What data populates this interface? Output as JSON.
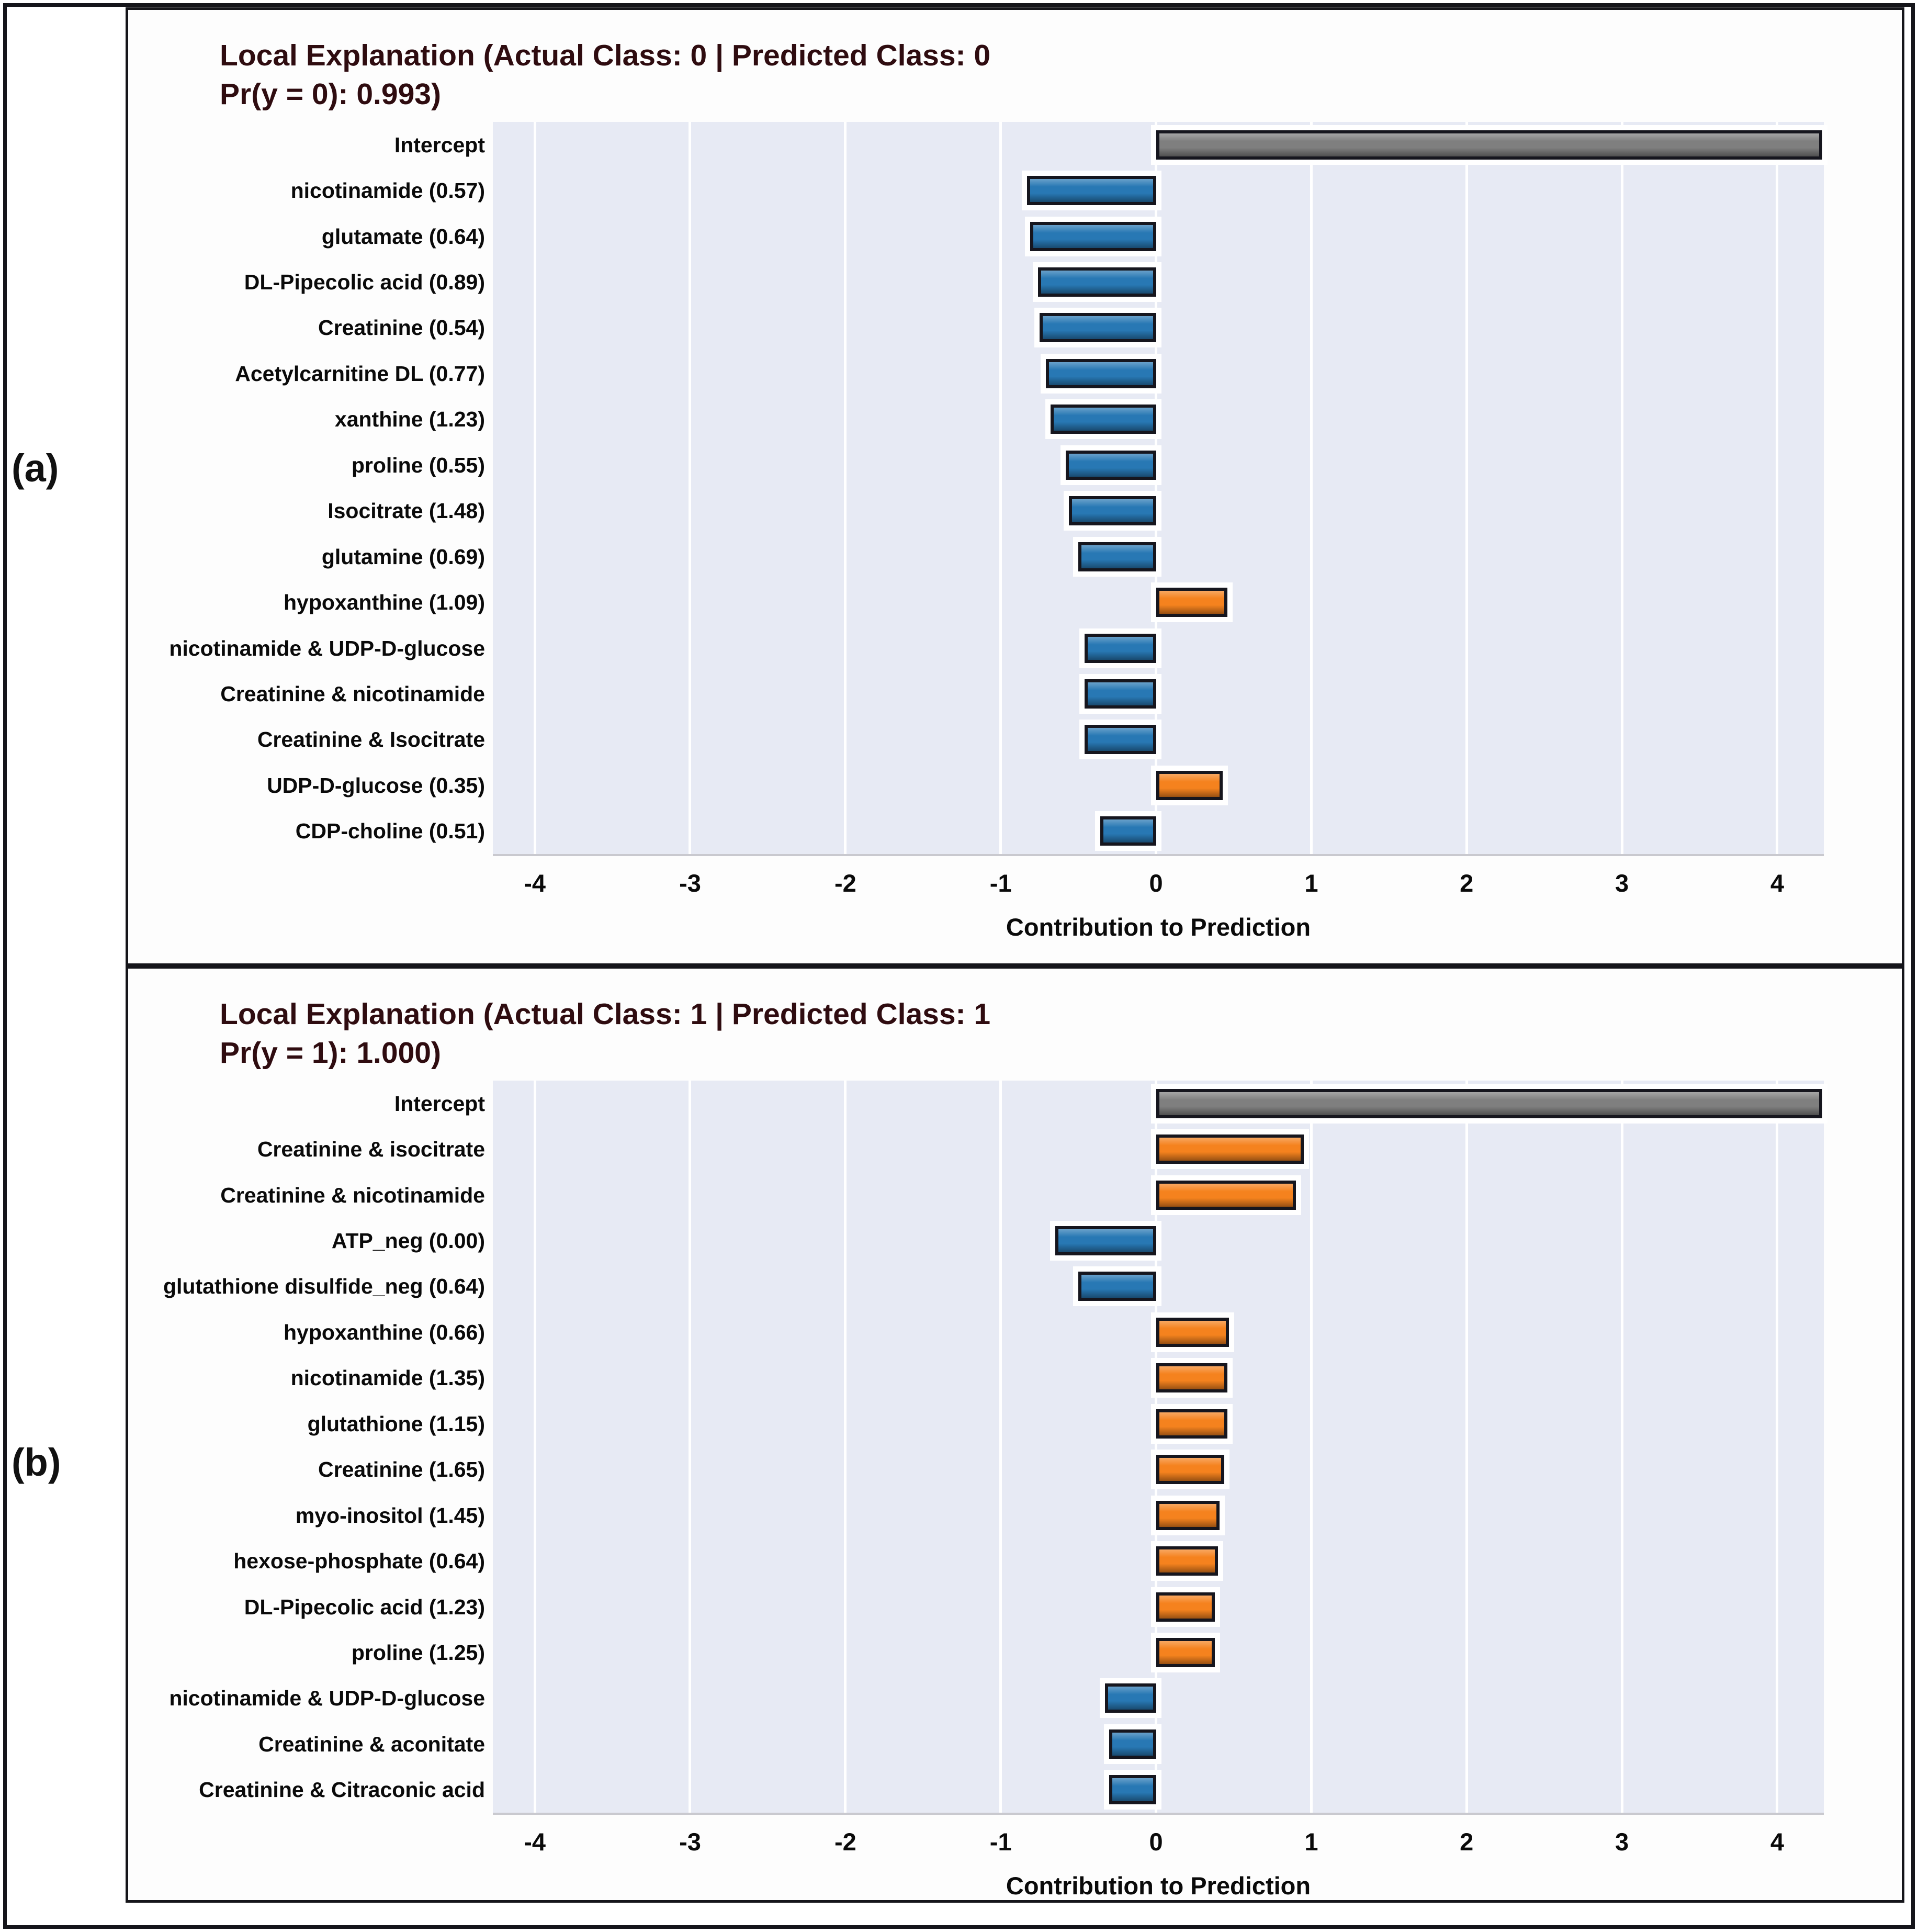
{
  "figure": {
    "panel_labels": [
      "(a)",
      "(b)"
    ],
    "colors": {
      "positive_bar": "#f5821e",
      "negative_bar": "#2878b4",
      "intercept_bar": "#7f7f7f",
      "bar_border": "#16161e",
      "plot_background": "#e7eaf4",
      "gridline": "#ffffff",
      "title_text": "#2f0c10",
      "label_text": "#0a0a0a"
    }
  },
  "chart_data": [
    {
      "type": "bar",
      "orientation": "horizontal",
      "title_line1": "Local Explanation (Actual Class: 0 | Predicted Class: 0",
      "title_line2": "Pr(y = 0): 0.993)",
      "xlabel": "Contribution to Prediction",
      "xlim": [
        -4.27,
        4.3
      ],
      "xticks": [
        -4,
        -3,
        -2,
        -1,
        0,
        1,
        2,
        3,
        4
      ],
      "grid": "on",
      "categories": [
        "Intercept",
        "nicotinamide (0.57)",
        "glutamate (0.64)",
        "DL-Pipecolic acid (0.89)",
        "Creatinine (0.54)",
        "Acetylcarnitine DL (0.77)",
        "xanthine (1.23)",
        "proline (0.55)",
        "Isocitrate (1.48)",
        "glutamine (0.69)",
        "hypoxanthine (1.09)",
        "nicotinamide & UDP-D-glucose",
        "Creatinine & nicotinamide",
        "Creatinine & Isocitrate",
        "UDP-D-glucose (0.35)",
        "CDP-choline (0.51)"
      ],
      "values": [
        4.29,
        -0.83,
        -0.81,
        -0.76,
        -0.75,
        -0.71,
        -0.68,
        -0.58,
        -0.56,
        -0.5,
        0.46,
        -0.46,
        -0.46,
        -0.46,
        0.43,
        -0.36
      ],
      "bar_kinds": [
        "intercept",
        "negative",
        "negative",
        "negative",
        "negative",
        "negative",
        "negative",
        "negative",
        "negative",
        "negative",
        "positive",
        "negative",
        "negative",
        "negative",
        "positive",
        "negative"
      ]
    },
    {
      "type": "bar",
      "orientation": "horizontal",
      "title_line1": "Local Explanation (Actual Class: 1 | Predicted Class: 1",
      "title_line2": "Pr(y = 1): 1.000)",
      "xlabel": "Contribution to Prediction",
      "xlim": [
        -4.27,
        4.3
      ],
      "xticks": [
        -4,
        -3,
        -2,
        -1,
        0,
        1,
        2,
        3,
        4
      ],
      "grid": "on",
      "categories": [
        "Intercept",
        "Creatinine & isocitrate",
        "Creatinine & nicotinamide",
        "ATP_neg (0.00)",
        "glutathione disulfide_neg (0.64)",
        "hypoxanthine (0.66)",
        "nicotinamide (1.35)",
        "glutathione (1.15)",
        "Creatinine (1.65)",
        "myo-inositol (1.45)",
        "hexose-phosphate (0.64)",
        "DL-Pipecolic acid (1.23)",
        "proline (1.25)",
        "nicotinamide & UDP-D-glucose",
        "Creatinine & aconitate",
        "Creatinine & Citraconic acid"
      ],
      "values": [
        4.29,
        0.95,
        0.9,
        -0.65,
        -0.5,
        0.47,
        0.46,
        0.46,
        0.44,
        0.41,
        0.4,
        0.38,
        0.38,
        -0.33,
        -0.3,
        -0.3
      ],
      "bar_kinds": [
        "intercept",
        "positive",
        "positive",
        "negative",
        "negative",
        "positive",
        "positive",
        "positive",
        "positive",
        "positive",
        "positive",
        "positive",
        "positive",
        "negative",
        "negative",
        "negative"
      ]
    }
  ]
}
